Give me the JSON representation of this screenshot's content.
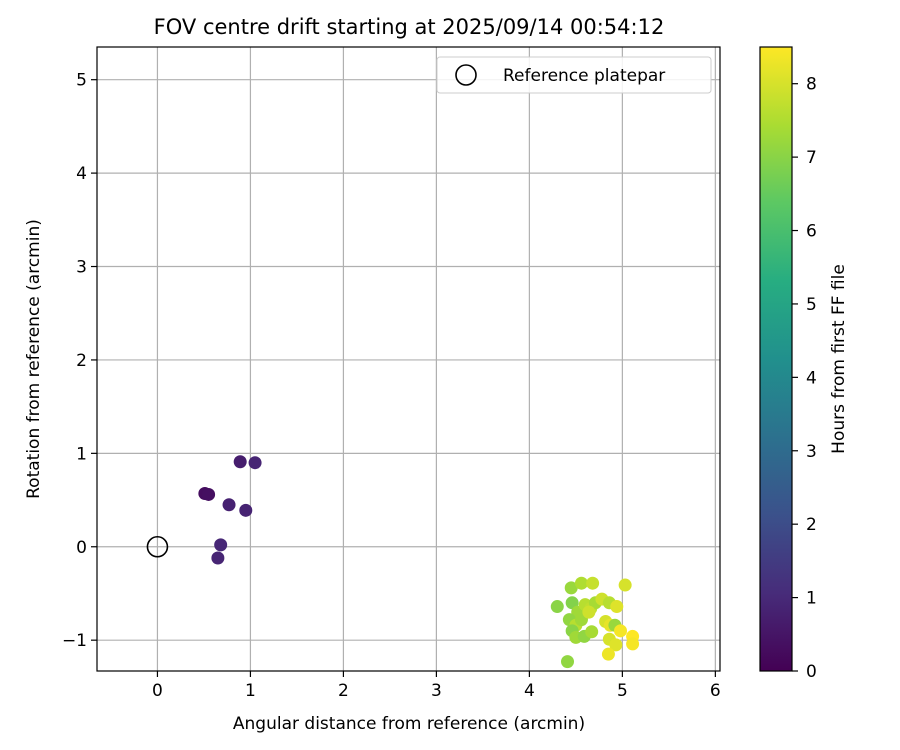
{
  "chart_data": {
    "type": "scatter",
    "title": "FOV centre drift starting at 2025/09/14 00:54:12",
    "xlabel": "Angular distance from reference (arcmin)",
    "ylabel": "Rotation from reference (arcmin)",
    "xlim": [
      -0.65,
      6.05
    ],
    "ylim": [
      -1.33,
      5.35
    ],
    "xticks": [
      0,
      1,
      2,
      3,
      4,
      5,
      6
    ],
    "yticks": [
      -1,
      0,
      1,
      2,
      3,
      4,
      5
    ],
    "ytick_labels": [
      "−1",
      "0",
      "1",
      "2",
      "3",
      "4",
      "5"
    ],
    "grid": true,
    "legend": {
      "placement": "top-right",
      "entries": [
        "Reference platepar"
      ]
    },
    "reference_point": {
      "name": "Reference platepar",
      "x": 0,
      "y": 0
    },
    "colorbar": {
      "label": "Hours from first FF file",
      "range": [
        0,
        8.5
      ],
      "ticks": [
        0,
        1,
        2,
        3,
        4,
        5,
        6,
        7,
        8
      ],
      "colormap": "viridis"
    },
    "points": [
      {
        "x": 0.51,
        "y": 0.57,
        "c": 0.3
      },
      {
        "x": 0.55,
        "y": 0.56,
        "c": 0.35
      },
      {
        "x": 0.77,
        "y": 0.45,
        "c": 0.8
      },
      {
        "x": 0.89,
        "y": 0.91,
        "c": 0.7
      },
      {
        "x": 1.05,
        "y": 0.9,
        "c": 0.9
      },
      {
        "x": 0.95,
        "y": 0.39,
        "c": 0.85
      },
      {
        "x": 0.68,
        "y": 0.02,
        "c": 0.95
      },
      {
        "x": 0.65,
        "y": -0.12,
        "c": 0.9
      },
      {
        "x": 4.3,
        "y": -0.64,
        "c": 7.0
      },
      {
        "x": 4.45,
        "y": -0.44,
        "c": 7.2
      },
      {
        "x": 4.56,
        "y": -0.39,
        "c": 7.5
      },
      {
        "x": 4.68,
        "y": -0.39,
        "c": 7.8
      },
      {
        "x": 5.03,
        "y": -0.41,
        "c": 8.0
      },
      {
        "x": 4.46,
        "y": -0.6,
        "c": 6.9
      },
      {
        "x": 4.52,
        "y": -0.7,
        "c": 7.3
      },
      {
        "x": 4.6,
        "y": -0.62,
        "c": 7.6
      },
      {
        "x": 4.66,
        "y": -0.66,
        "c": 7.7
      },
      {
        "x": 4.71,
        "y": -0.6,
        "c": 7.4
      },
      {
        "x": 4.78,
        "y": -0.56,
        "c": 7.9
      },
      {
        "x": 4.86,
        "y": -0.6,
        "c": 7.6
      },
      {
        "x": 4.94,
        "y": -0.64,
        "c": 8.1
      },
      {
        "x": 4.43,
        "y": -0.78,
        "c": 7.1
      },
      {
        "x": 4.5,
        "y": -0.84,
        "c": 7.6
      },
      {
        "x": 4.56,
        "y": -0.78,
        "c": 7.3
      },
      {
        "x": 4.64,
        "y": -0.7,
        "c": 7.9
      },
      {
        "x": 4.82,
        "y": -0.8,
        "c": 8.0
      },
      {
        "x": 4.87,
        "y": -0.84,
        "c": 8.2
      },
      {
        "x": 4.92,
        "y": -0.84,
        "c": 7.2
      },
      {
        "x": 4.98,
        "y": -0.9,
        "c": 8.4
      },
      {
        "x": 4.46,
        "y": -0.9,
        "c": 7.0
      },
      {
        "x": 4.5,
        "y": -0.97,
        "c": 7.3
      },
      {
        "x": 4.59,
        "y": -0.96,
        "c": 7.1
      },
      {
        "x": 4.67,
        "y": -0.91,
        "c": 7.4
      },
      {
        "x": 4.86,
        "y": -0.99,
        "c": 8.0
      },
      {
        "x": 4.93,
        "y": -1.05,
        "c": 8.1
      },
      {
        "x": 5.11,
        "y": -0.96,
        "c": 8.5
      },
      {
        "x": 5.11,
        "y": -1.04,
        "c": 8.4
      },
      {
        "x": 4.85,
        "y": -1.15,
        "c": 8.3
      },
      {
        "x": 4.41,
        "y": -1.23,
        "c": 7.1
      }
    ]
  }
}
